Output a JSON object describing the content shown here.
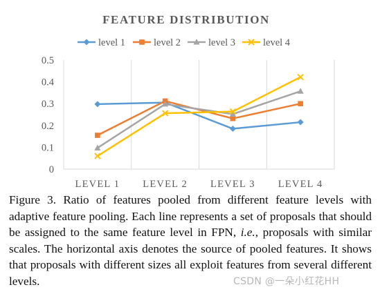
{
  "chart_data": {
    "type": "line",
    "title": "FEATURE DISTRIBUTION",
    "categories": [
      "LEVEL 1",
      "LEVEL 2",
      "LEVEL 3",
      "LEVEL 4"
    ],
    "ylim": [
      0,
      0.5
    ],
    "yticks": [
      "0",
      "0.1",
      "0.2",
      "0.3",
      "0.4",
      "0.5"
    ],
    "grid": "vertical",
    "legend_position": "top",
    "series": [
      {
        "name": "level 1",
        "color": "#5b9bd5",
        "marker": "diamond",
        "values": [
          0.298,
          0.305,
          0.185,
          0.215
        ]
      },
      {
        "name": "level 2",
        "color": "#ed7d31",
        "marker": "square",
        "values": [
          0.155,
          0.312,
          0.232,
          0.3
        ]
      },
      {
        "name": "level 3",
        "color": "#a5a5a5",
        "marker": "triangle",
        "values": [
          0.097,
          0.298,
          0.252,
          0.357
        ]
      },
      {
        "name": "level 4",
        "color": "#ffc000",
        "marker": "x",
        "values": [
          0.06,
          0.256,
          0.264,
          0.422
        ]
      }
    ]
  },
  "caption": {
    "prefix": "Figure 3. Ratio of features pooled from different feature levels with adaptive feature pooling.  Each line represents a set of proposals that should be assigned to the same feature level in FPN, ",
    "ie": "i.e.",
    "suffix": ", proposals with similar scales. The horizontal axis denotes the source of pooled features.  It shows that proposals with different sizes all exploit features from several different levels."
  },
  "watermark": "CSDN @一朵小红花HH"
}
